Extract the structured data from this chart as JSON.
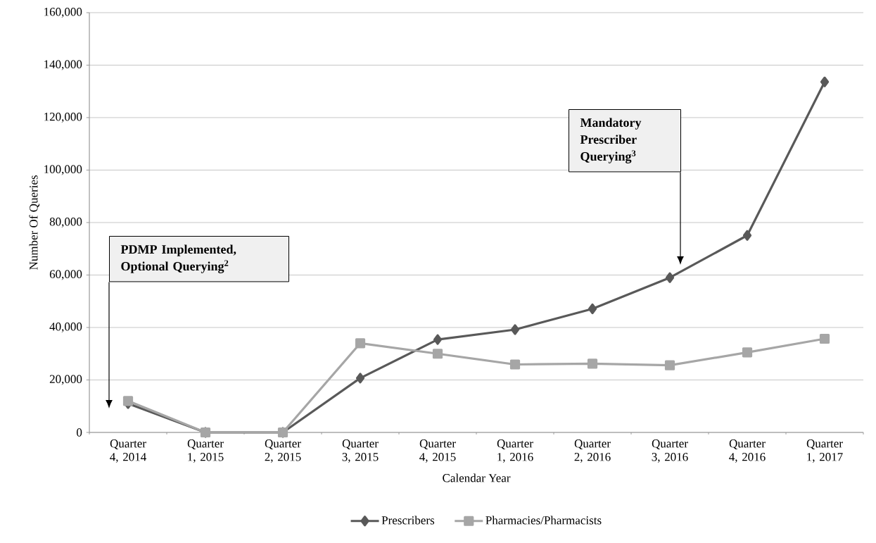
{
  "chart_data": {
    "type": "line",
    "xlabel": "Calendar Year",
    "ylabel": "Number Of Queries",
    "categories": [
      "Quarter 4, 2014",
      "Quarter 1, 2015",
      "Quarter 2, 2015",
      "Quarter 3, 2015",
      "Quarter 4, 2015",
      "Quarter 1, 2016",
      "Quarter 2, 2016",
      "Quarter 3, 2016",
      "Quarter 4, 2016",
      "Quarter 1, 2017"
    ],
    "series": [
      {
        "name": "Prescribers",
        "color": "#595959",
        "marker": "diamond",
        "values": [
          11000,
          0,
          0,
          20700,
          35400,
          39200,
          47100,
          59000,
          75100,
          133600
        ]
      },
      {
        "name": "Pharmacies/Pharmacists",
        "color": "#a6a6a6",
        "marker": "square",
        "values": [
          12000,
          0,
          0,
          34000,
          30000,
          25900,
          26200,
          25600,
          30500,
          35700
        ]
      }
    ],
    "ylim": [
      0,
      160000
    ],
    "yticks": [
      0,
      {
        "value": 20000,
        "label": "20,000"
      },
      {
        "value": 40000,
        "label": "40,000"
      },
      {
        "value": 60000,
        "label": "60,000"
      },
      {
        "value": 80000,
        "label": "80,000"
      },
      {
        "value": 100000,
        "label": "100,000"
      },
      {
        "value": 120000,
        "label": "120,000"
      },
      {
        "value": 140000,
        "label": "140,000"
      },
      {
        "value": 160000,
        "label": "160,000"
      }
    ],
    "grid": "y",
    "legend": "bottom",
    "line_style": "solid",
    "annotations": [
      "PDMP Implemented, Optional Querying$^{2}$",
      "Mandatory Prescriber Querying$^{3}$"
    ]
  }
}
